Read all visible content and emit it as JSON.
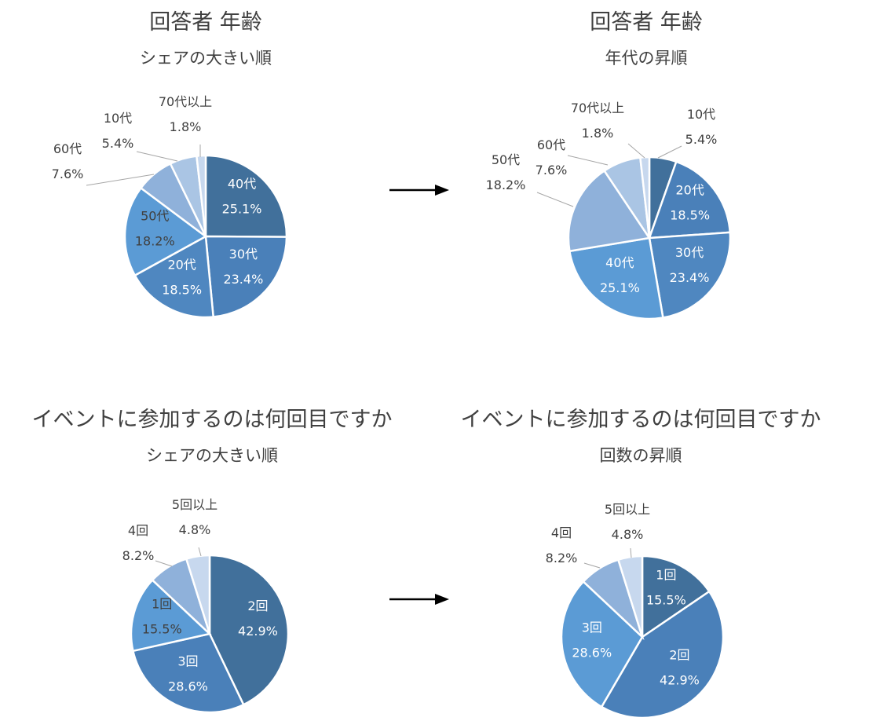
{
  "chart_data": [
    {
      "type": "pie",
      "title": "回答者 年齢",
      "subtitle": "シェアの大きい順",
      "colors": {
        "inside_label": "#ffffff",
        "outside_label": "#404040"
      },
      "slices": [
        {
          "label": "40代",
          "value": 25.1,
          "value_label": "25.1%",
          "color": "#41709b"
        },
        {
          "label": "30代",
          "value": 23.4,
          "value_label": "23.4%",
          "color": "#4a80b9"
        },
        {
          "label": "20代",
          "value": 18.5,
          "value_label": "18.5%",
          "color": "#4f87c0"
        },
        {
          "label": "50代",
          "value": 18.2,
          "value_label": "18.2%",
          "color": "#5b9bd5"
        },
        {
          "label": "60代",
          "value": 7.6,
          "value_label": "7.6%",
          "color": "#8fb1da"
        },
        {
          "label": "10代",
          "value": 5.4,
          "value_label": "5.4%",
          "color": "#aac5e4"
        },
        {
          "label": "70代以上",
          "value": 1.8,
          "value_label": "1.8%",
          "color": "#c7d8ee"
        }
      ]
    },
    {
      "type": "pie",
      "title": "回答者 年齢",
      "subtitle": "年代の昇順",
      "colors": {
        "inside_label": "#ffffff",
        "outside_label": "#404040"
      },
      "slices": [
        {
          "label": "10代",
          "value": 5.4,
          "value_label": "5.4%",
          "color": "#41709b"
        },
        {
          "label": "20代",
          "value": 18.5,
          "value_label": "18.5%",
          "color": "#4a80b9"
        },
        {
          "label": "30代",
          "value": 23.4,
          "value_label": "23.4%",
          "color": "#4f87c0"
        },
        {
          "label": "40代",
          "value": 25.1,
          "value_label": "25.1%",
          "color": "#5b9bd5"
        },
        {
          "label": "50代",
          "value": 18.2,
          "value_label": "18.2%",
          "color": "#8fb1da"
        },
        {
          "label": "60代",
          "value": 7.6,
          "value_label": "7.6%",
          "color": "#aac5e4"
        },
        {
          "label": "70代以上",
          "value": 1.8,
          "value_label": "1.8%",
          "color": "#c7d8ee"
        }
      ]
    },
    {
      "type": "pie",
      "title": "イベントに参加するのは何回目ですか",
      "subtitle": "シェアの大きい順",
      "colors": {
        "inside_label": "#ffffff",
        "outside_label": "#404040"
      },
      "slices": [
        {
          "label": "2回",
          "value": 42.9,
          "value_label": "42.9%",
          "color": "#41709b"
        },
        {
          "label": "3回",
          "value": 28.6,
          "value_label": "28.6%",
          "color": "#4a80b9"
        },
        {
          "label": "1回",
          "value": 15.5,
          "value_label": "15.5%",
          "color": "#5b9bd5"
        },
        {
          "label": "4回",
          "value": 8.2,
          "value_label": "8.2%",
          "color": "#8fb1da"
        },
        {
          "label": "5回以上",
          "value": 4.8,
          "value_label": "4.8%",
          "color": "#c7d8ee"
        }
      ]
    },
    {
      "type": "pie",
      "title": "イベントに参加するのは何回目ですか",
      "subtitle": "回数の昇順",
      "colors": {
        "inside_label": "#ffffff",
        "outside_label": "#404040"
      },
      "slices": [
        {
          "label": "1回",
          "value": 15.5,
          "value_label": "15.5%",
          "color": "#41709b"
        },
        {
          "label": "2回",
          "value": 42.9,
          "value_label": "42.9%",
          "color": "#4a80b9"
        },
        {
          "label": "3回",
          "value": 28.6,
          "value_label": "28.6%",
          "color": "#5b9bd5"
        },
        {
          "label": "4回",
          "value": 8.2,
          "value_label": "8.2%",
          "color": "#8fb1da"
        },
        {
          "label": "5回以上",
          "value": 4.8,
          "value_label": "4.8%",
          "color": "#c7d8ee"
        }
      ]
    }
  ]
}
